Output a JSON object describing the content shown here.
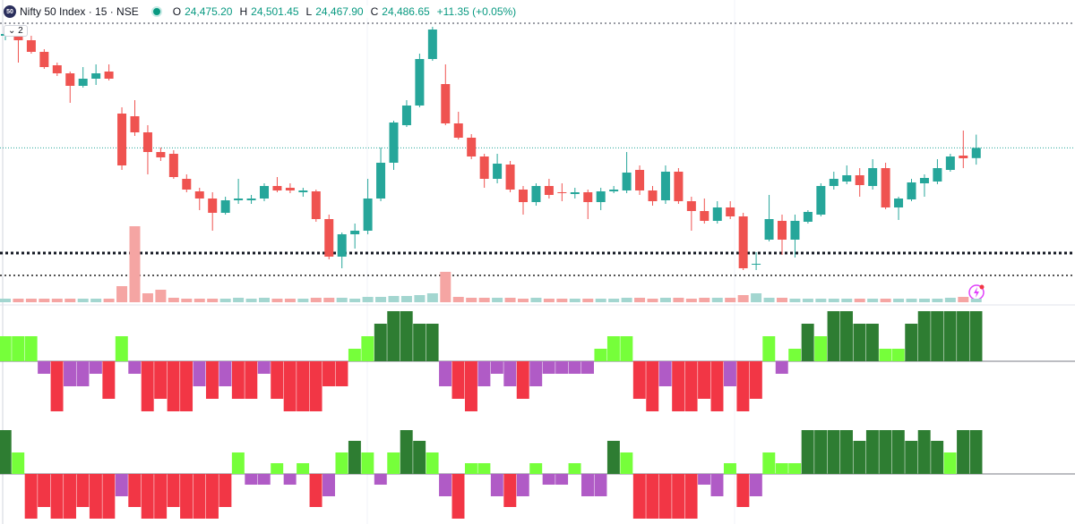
{
  "header": {
    "badge": "50",
    "title": "Nifty 50 Index · 15 · NSE",
    "o": "O",
    "open": "24,475.20",
    "h": "H",
    "high": "24,501.45",
    "l": "L",
    "low": "24,467.90",
    "c": "C",
    "close": "24,486.65",
    "change": "+11.35 (+0.05%)",
    "panes": "2"
  },
  "chart_data": [
    {
      "type": "candlestick",
      "up_color": "#26a69a",
      "down_color": "#ef5350",
      "ylim": [
        24312,
        24624
      ],
      "price_line_color": "#26a69a",
      "levels": [
        {
          "value": 24626,
          "color": "#787b86",
          "width": 1.5
        },
        {
          "value": 24369,
          "color": "#131722",
          "width": 3
        },
        {
          "value": 24344,
          "color": "#555555",
          "width": 2
        }
      ],
      "open": [
        24612,
        24614,
        24607,
        24594,
        24579,
        24570,
        24556,
        24564,
        24572,
        24525,
        24522,
        24504,
        24482,
        24480,
        24452,
        24438,
        24430,
        24414,
        24428,
        24428,
        24430,
        24444,
        24442,
        24437,
        24438,
        24407,
        24365,
        24390,
        24394,
        24430,
        24470,
        24512,
        24534,
        24586,
        24558,
        24514,
        24498,
        24477,
        24452,
        24468,
        24440,
        24426,
        24444,
        24437,
        24435,
        24437,
        24426,
        24438,
        24439,
        24462,
        24439,
        24428,
        24460,
        24427,
        24416,
        24405,
        24420,
        24410,
        24356,
        24384,
        24405,
        24384,
        24404,
        24412,
        24444,
        24449,
        24456,
        24444,
        24464,
        24420,
        24429,
        24447,
        24449,
        24462,
        24478,
        24475.2
      ],
      "high": [
        24617,
        24619,
        24612,
        24597,
        24582,
        24572,
        24577,
        24580,
        24580,
        24532,
        24540,
        24512,
        24487,
        24484,
        24457,
        24442,
        24437,
        24432,
        24452,
        24434,
        24447,
        24454,
        24447,
        24442,
        24440,
        24412,
        24392,
        24402,
        24452,
        24487,
        24517,
        24540,
        24592,
        24622,
        24580,
        24527,
        24502,
        24480,
        24480,
        24472,
        24444,
        24447,
        24452,
        24447,
        24442,
        24440,
        24442,
        24444,
        24482,
        24467,
        24444,
        24467,
        24464,
        24432,
        24430,
        24427,
        24427,
        24414,
        24370,
        24434,
        24412,
        24412,
        24417,
        24447,
        24460,
        24467,
        24464,
        24474,
        24470,
        24432,
        24452,
        24457,
        24474,
        24480,
        24506,
        24501.45
      ],
      "low": [
        24607,
        24582,
        24592,
        24575,
        24567,
        24537,
        24554,
        24557,
        24562,
        24462,
        24500,
        24457,
        24472,
        24452,
        24437,
        24417,
        24394,
        24412,
        24424,
        24424,
        24427,
        24437,
        24436,
        24432,
        24404,
        24362,
        24352,
        24374,
        24390,
        24427,
        24462,
        24510,
        24532,
        24584,
        24512,
        24496,
        24474,
        24442,
        24447,
        24437,
        24412,
        24422,
        24430,
        24427,
        24430,
        24407,
        24417,
        24436,
        24436,
        24434,
        24422,
        24424,
        24424,
        24394,
        24402,
        24402,
        24407,
        24350,
        24350,
        24382,
        24367,
        24364,
        24402,
        24410,
        24440,
        24446,
        24432,
        24440,
        24418,
        24406,
        24427,
        24432,
        24446,
        24460,
        24464,
        24467.9
      ],
      "close": [
        24614,
        24607,
        24594,
        24577,
        24570,
        24556,
        24564,
        24570,
        24564,
        24467,
        24504,
        24482,
        24476,
        24454,
        24440,
        24430,
        24414,
        24428,
        24430,
        24430,
        24444,
        24439,
        24439,
        24439,
        24407,
        24365,
        24390,
        24394,
        24430,
        24470,
        24515,
        24534,
        24586,
        24619,
        24514,
        24498,
        24477,
        24452,
        24469,
        24440,
        24426,
        24444,
        24434,
        24436,
        24437,
        24426,
        24438,
        24440,
        24459,
        24439,
        24427,
        24460,
        24427,
        24416,
        24405,
        24420,
        24410,
        24352,
        24357,
        24407,
        24384,
        24405,
        24415,
        24444,
        24452,
        24456,
        24445,
        24464,
        24420,
        24430,
        24448,
        24453,
        24464,
        24477,
        24475,
        24486.65
      ]
    },
    {
      "type": "volume",
      "up_color": "#a3d6d0",
      "down_color": "#f5a5a3",
      "ylim": [
        0,
        100
      ],
      "values": [
        4,
        4,
        4,
        4,
        4,
        4,
        4,
        4,
        4,
        18,
        85,
        10,
        14,
        5,
        4,
        4,
        4,
        4,
        5,
        4,
        5,
        4,
        4,
        4,
        5,
        5,
        5,
        4,
        6,
        6,
        7,
        7,
        8,
        10,
        34,
        6,
        5,
        5,
        5,
        5,
        4,
        5,
        4,
        4,
        4,
        4,
        4,
        4,
        5,
        5,
        4,
        5,
        5,
        4,
        5,
        5,
        5,
        8,
        10,
        5,
        5,
        4,
        4,
        4,
        4,
        4,
        4,
        4,
        4,
        4,
        4,
        4,
        4,
        5,
        6,
        4
      ]
    },
    {
      "type": "histogram",
      "ylim": [
        -62,
        62
      ],
      "values": [
        28,
        28,
        28,
        -14,
        -56,
        -28,
        -28,
        -14,
        -42,
        28,
        -14,
        -56,
        -42,
        -56,
        -56,
        -28,
        -42,
        -28,
        -42,
        -42,
        -14,
        -42,
        -56,
        -56,
        -56,
        -28,
        -28,
        14,
        28,
        42,
        56,
        56,
        42,
        42,
        -28,
        -42,
        -56,
        -28,
        -14,
        -28,
        -42,
        -28,
        -14,
        -14,
        -14,
        -14,
        14,
        28,
        28,
        -42,
        -56,
        -28,
        -56,
        -56,
        -42,
        -56,
        -28,
        -56,
        -42,
        28,
        -14,
        14,
        42,
        28,
        56,
        56,
        42,
        42,
        14,
        14,
        42,
        56,
        56,
        56,
        56,
        56
      ],
      "colors": [
        "#76ff3a",
        "#76ff3a",
        "#76ff3a",
        "#b05bc6",
        "#f23645",
        "#b05bc6",
        "#b05bc6",
        "#b05bc6",
        "#f23645",
        "#76ff3a",
        "#b05bc6",
        "#f23645",
        "#f23645",
        "#f23645",
        "#f23645",
        "#b05bc6",
        "#f23645",
        "#b05bc6",
        "#f23645",
        "#f23645",
        "#b05bc6",
        "#f23645",
        "#f23645",
        "#f23645",
        "#f23645",
        "#f23645",
        "#f23645",
        "#76ff3a",
        "#76ff3a",
        "#2e7d32",
        "#2e7d32",
        "#2e7d32",
        "#2e7d32",
        "#2e7d32",
        "#b05bc6",
        "#f23645",
        "#f23645",
        "#b05bc6",
        "#b05bc6",
        "#b05bc6",
        "#f23645",
        "#b05bc6",
        "#b05bc6",
        "#b05bc6",
        "#b05bc6",
        "#b05bc6",
        "#76ff3a",
        "#76ff3a",
        "#76ff3a",
        "#f23645",
        "#f23645",
        "#b05bc6",
        "#f23645",
        "#f23645",
        "#f23645",
        "#f23645",
        "#b05bc6",
        "#f23645",
        "#f23645",
        "#76ff3a",
        "#b05bc6",
        "#76ff3a",
        "#2e7d32",
        "#76ff3a",
        "#2e7d32",
        "#2e7d32",
        "#2e7d32",
        "#2e7d32",
        "#76ff3a",
        "#76ff3a",
        "#2e7d32",
        "#2e7d32",
        "#2e7d32",
        "#2e7d32",
        "#2e7d32",
        "#2e7d32"
      ]
    },
    {
      "type": "histogram",
      "ylim": [
        -56,
        56
      ],
      "values": [
        49,
        24,
        -50,
        -37,
        -50,
        -50,
        -37,
        -50,
        -50,
        -25,
        -37,
        -50,
        -50,
        -37,
        -50,
        -50,
        -50,
        -37,
        24,
        -12,
        -12,
        12,
        -12,
        12,
        -37,
        -25,
        24,
        37,
        24,
        -12,
        24,
        49,
        37,
        24,
        -25,
        -50,
        12,
        12,
        -25,
        -37,
        -25,
        12,
        -12,
        -12,
        12,
        -25,
        -25,
        37,
        24,
        -50,
        -50,
        -50,
        -50,
        -50,
        -12,
        -25,
        12,
        -37,
        -25,
        24,
        12,
        12,
        49,
        49,
        49,
        49,
        37,
        49,
        49,
        49,
        37,
        49,
        37,
        24,
        49,
        49
      ],
      "colors": [
        "#2e7d32",
        "#76ff3a",
        "#f23645",
        "#f23645",
        "#f23645",
        "#f23645",
        "#f23645",
        "#f23645",
        "#f23645",
        "#b05bc6",
        "#f23645",
        "#f23645",
        "#f23645",
        "#f23645",
        "#f23645",
        "#f23645",
        "#f23645",
        "#f23645",
        "#76ff3a",
        "#b05bc6",
        "#b05bc6",
        "#76ff3a",
        "#b05bc6",
        "#76ff3a",
        "#f23645",
        "#b05bc6",
        "#76ff3a",
        "#2e7d32",
        "#76ff3a",
        "#b05bc6",
        "#76ff3a",
        "#2e7d32",
        "#2e7d32",
        "#76ff3a",
        "#b05bc6",
        "#f23645",
        "#76ff3a",
        "#76ff3a",
        "#b05bc6",
        "#f23645",
        "#b05bc6",
        "#76ff3a",
        "#b05bc6",
        "#b05bc6",
        "#76ff3a",
        "#b05bc6",
        "#b05bc6",
        "#2e7d32",
        "#76ff3a",
        "#f23645",
        "#f23645",
        "#f23645",
        "#f23645",
        "#f23645",
        "#b05bc6",
        "#b05bc6",
        "#76ff3a",
        "#f23645",
        "#b05bc6",
        "#76ff3a",
        "#76ff3a",
        "#76ff3a",
        "#2e7d32",
        "#2e7d32",
        "#2e7d32",
        "#2e7d32",
        "#2e7d32",
        "#2e7d32",
        "#2e7d32",
        "#2e7d32",
        "#2e7d32",
        "#2e7d32",
        "#2e7d32",
        "#76ff3a",
        "#2e7d32",
        "#2e7d32"
      ]
    }
  ]
}
